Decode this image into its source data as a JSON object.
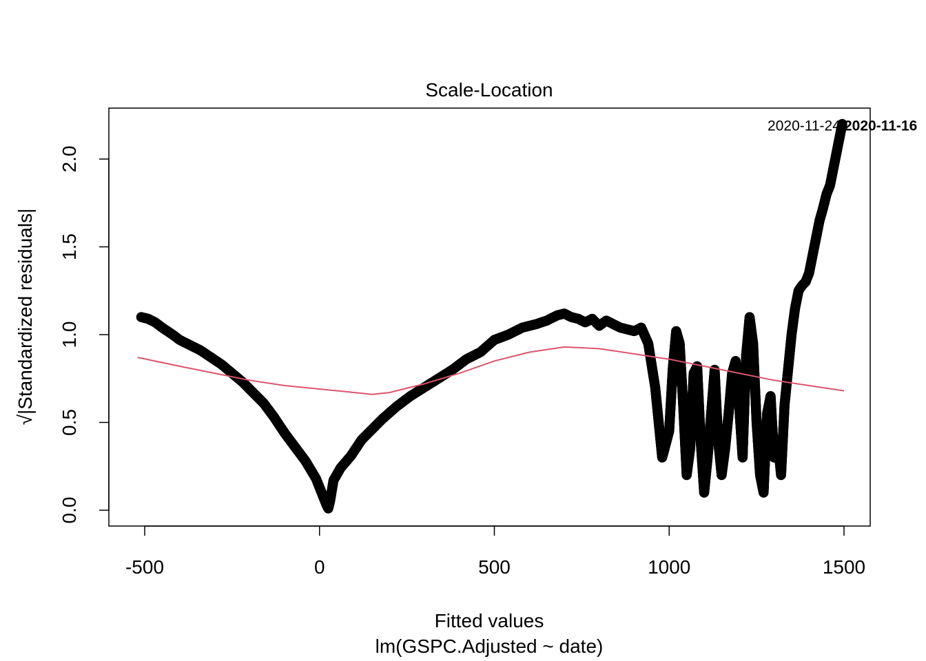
{
  "chart_data": {
    "type": "scatter",
    "title": "Scale-Location",
    "xlabel": "Fitted values",
    "sublabel": "lm(GSPC.Adjusted ~ date)",
    "ylabel": "√|Standardized residuals|",
    "xlim": [
      -520,
      1500
    ],
    "ylim": [
      0.0,
      2.2
    ],
    "xticks": [
      -500,
      0,
      500,
      1000,
      1500
    ],
    "xtick_labels": [
      "-500",
      "0",
      "500",
      "1000",
      "1500"
    ],
    "yticks": [
      0.0,
      0.5,
      1.0,
      1.5,
      2.0
    ],
    "ytick_labels": [
      "0.0",
      "0.5",
      "1.0",
      "1.5",
      "2.0"
    ],
    "grid": false,
    "marker": "open-circle",
    "point_color": "#000000",
    "smoother_color": "#DF536B",
    "series": [
      {
        "kind": "points",
        "x": [
          -510,
          -490,
          -470,
          -450,
          -420,
          -400,
          -370,
          -340,
          -310,
          -280,
          -250,
          -220,
          -190,
          -160,
          -130,
          -100,
          -70,
          -40,
          -10,
          10,
          20,
          25,
          30,
          40,
          60,
          90,
          120,
          150,
          180,
          220,
          260,
          300,
          340,
          380,
          420,
          460,
          500,
          540,
          580,
          620,
          650,
          680,
          700,
          720,
          740,
          760,
          780,
          800,
          820,
          840,
          860,
          880,
          900,
          920,
          940,
          960,
          980,
          1000,
          1010,
          1020,
          1030,
          1040,
          1050,
          1060,
          1070,
          1080,
          1090,
          1100,
          1110,
          1120,
          1130,
          1140,
          1150,
          1160,
          1170,
          1180,
          1190,
          1200,
          1210,
          1220,
          1230,
          1240,
          1250,
          1260,
          1270,
          1280,
          1290,
          1300,
          1310,
          1320,
          1330,
          1340,
          1350,
          1360,
          1370,
          1380,
          1390,
          1400,
          1410,
          1420,
          1430,
          1440,
          1450,
          1460,
          1470,
          1480,
          1490,
          1495
        ],
        "y": [
          1.1,
          1.09,
          1.07,
          1.04,
          1.0,
          0.97,
          0.94,
          0.91,
          0.87,
          0.83,
          0.78,
          0.73,
          0.67,
          0.61,
          0.53,
          0.44,
          0.36,
          0.28,
          0.18,
          0.08,
          0.03,
          0.01,
          0.05,
          0.17,
          0.24,
          0.31,
          0.4,
          0.46,
          0.52,
          0.59,
          0.65,
          0.7,
          0.75,
          0.8,
          0.86,
          0.9,
          0.97,
          1.0,
          1.04,
          1.06,
          1.08,
          1.11,
          1.12,
          1.1,
          1.09,
          1.07,
          1.09,
          1.05,
          1.08,
          1.06,
          1.04,
          1.03,
          1.02,
          1.04,
          0.95,
          0.7,
          0.3,
          0.45,
          0.8,
          1.02,
          0.95,
          0.6,
          0.2,
          0.35,
          0.78,
          0.82,
          0.4,
          0.1,
          0.3,
          0.55,
          0.8,
          0.4,
          0.2,
          0.35,
          0.55,
          0.78,
          0.85,
          0.6,
          0.3,
          0.88,
          1.1,
          0.95,
          0.5,
          0.2,
          0.1,
          0.55,
          0.65,
          0.3,
          0.4,
          0.2,
          0.6,
          0.8,
          1.0,
          1.15,
          1.25,
          1.28,
          1.3,
          1.35,
          1.45,
          1.55,
          1.65,
          1.72,
          1.8,
          1.85,
          1.95,
          2.05,
          2.15,
          2.2
        ]
      },
      {
        "kind": "smoother",
        "x": [
          -520,
          -400,
          -300,
          -200,
          -100,
          0,
          100,
          150,
          200,
          300,
          400,
          500,
          600,
          700,
          800,
          900,
          1000,
          1100,
          1200,
          1300,
          1400,
          1500
        ],
        "y": [
          0.87,
          0.82,
          0.78,
          0.74,
          0.71,
          0.69,
          0.67,
          0.66,
          0.67,
          0.72,
          0.78,
          0.85,
          0.9,
          0.93,
          0.92,
          0.89,
          0.86,
          0.82,
          0.78,
          0.74,
          0.71,
          0.68
        ]
      }
    ],
    "annotations": [
      {
        "label": "2020-11-24",
        "style": "normal",
        "x": 1490,
        "y": 2.19,
        "anchor": "end"
      },
      {
        "label": "2020-11-16",
        "style": "bold",
        "x": 1500,
        "y": 2.19,
        "anchor": "start"
      }
    ]
  }
}
